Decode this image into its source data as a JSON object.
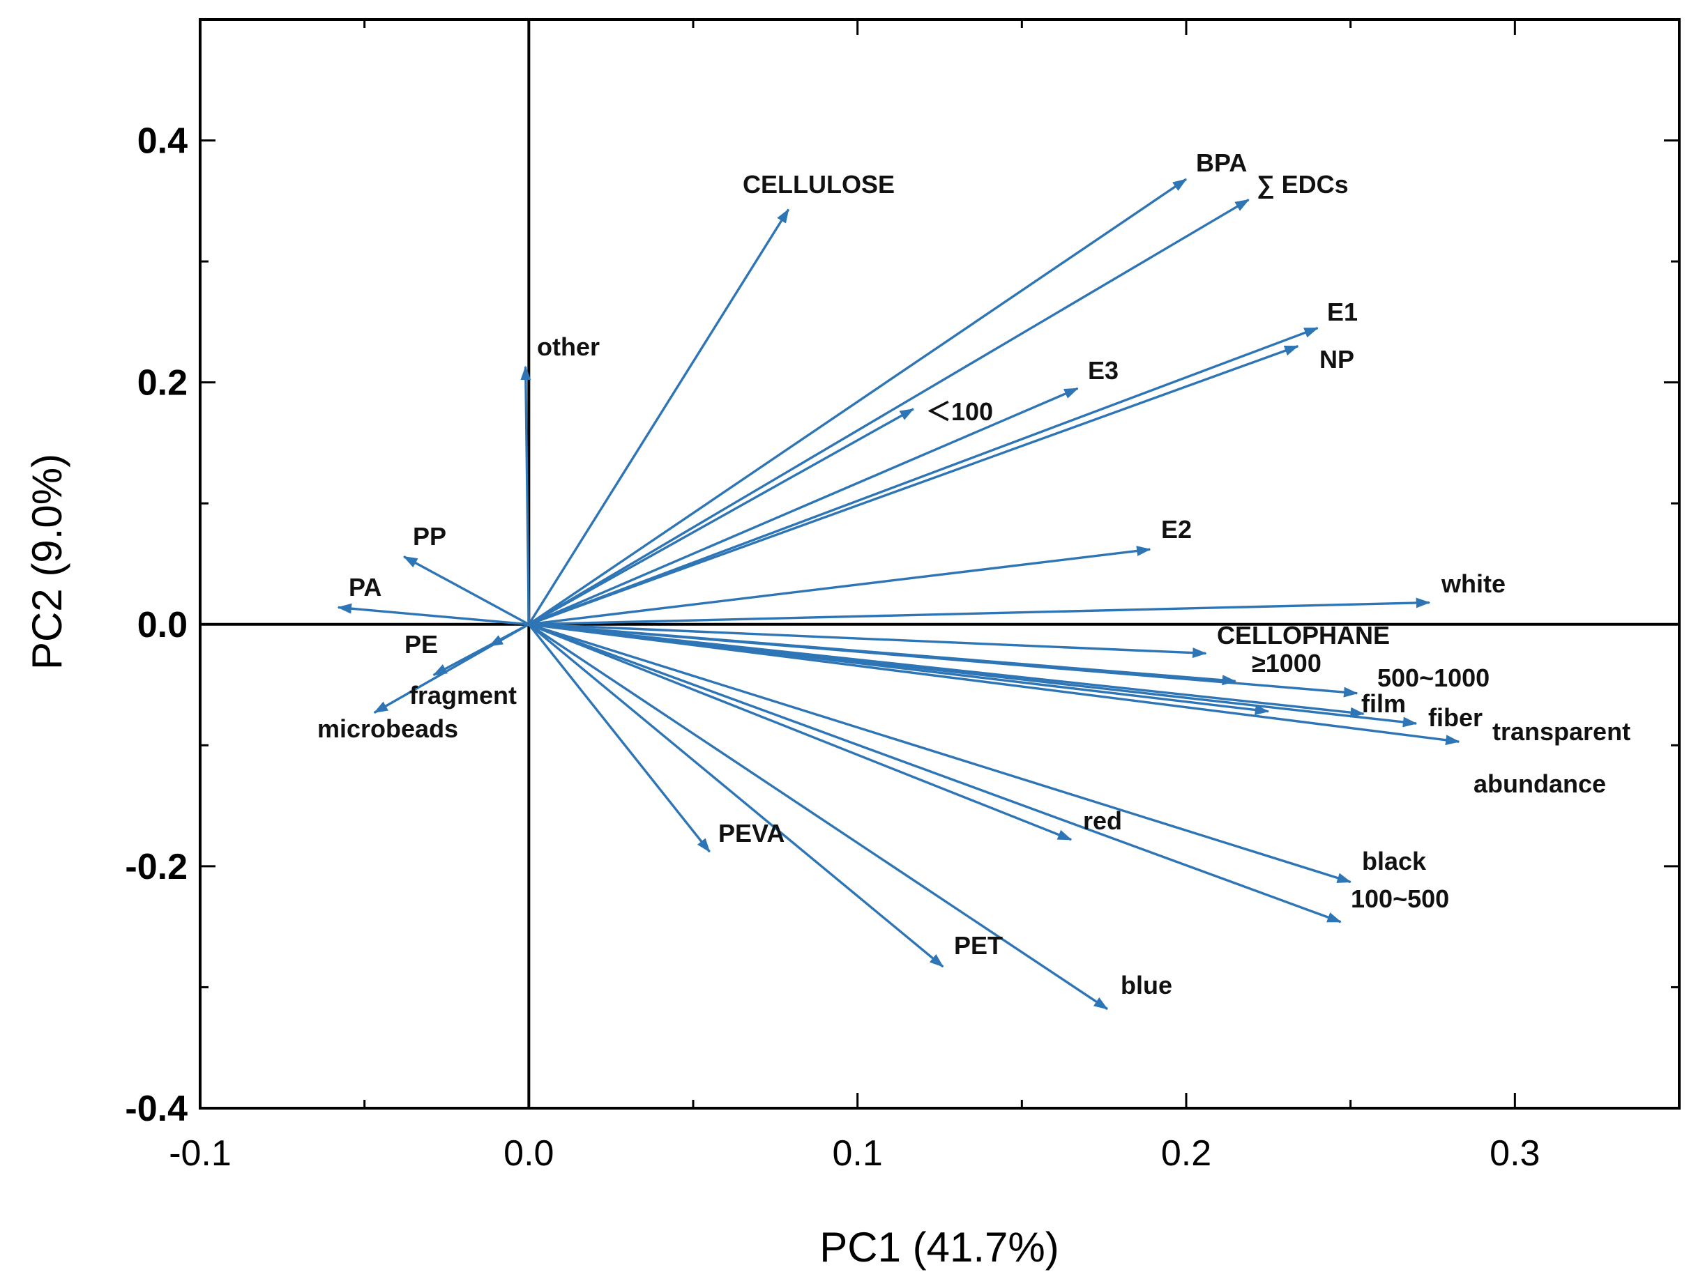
{
  "chart_data": {
    "type": "biplot",
    "xlabel": "PC1 (41.7%)",
    "ylabel": "PC2 (9.0%)",
    "xlim": [
      -0.1,
      0.35
    ],
    "ylim": [
      -0.4,
      0.5
    ],
    "x_ticks": [
      -0.1,
      0.0,
      0.1,
      0.2,
      0.3
    ],
    "x_tick_labels": [
      "-0.1",
      "0.0",
      "0.1",
      "0.2",
      "0.3"
    ],
    "y_ticks": [
      -0.4,
      -0.2,
      0.0,
      0.2,
      0.4
    ],
    "y_tick_labels": [
      "-0.4",
      "-0.2",
      "0.0",
      "0.2",
      "0.4"
    ],
    "arrow_color": "#2E75B6",
    "vectors": [
      {
        "name": "CELLULOSE",
        "x": 0.079,
        "y": 0.343
      },
      {
        "name": "other",
        "x": -0.001,
        "y": 0.213
      },
      {
        "name": "BPA",
        "x": 0.2,
        "y": 0.368
      },
      {
        "name": "∑ EDCs",
        "x": 0.219,
        "y": 0.351
      },
      {
        "name": "E1",
        "x": 0.24,
        "y": 0.245
      },
      {
        "name": "NP",
        "x": 0.234,
        "y": 0.23
      },
      {
        "name": "E3",
        "x": 0.167,
        "y": 0.195
      },
      {
        "name": "＜100",
        "x": 0.117,
        "y": 0.178
      },
      {
        "name": "E2",
        "x": 0.189,
        "y": 0.062
      },
      {
        "name": "white",
        "x": 0.274,
        "y": 0.018
      },
      {
        "name": "CELLOPHANE",
        "x": 0.206,
        "y": -0.024
      },
      {
        "name": "≥1000",
        "x": 0.215,
        "y": -0.047
      },
      {
        "name": "500~1000",
        "x": 0.252,
        "y": -0.057
      },
      {
        "name": "film",
        "x": 0.225,
        "y": -0.072
      },
      {
        "name": "fiber",
        "x": 0.254,
        "y": -0.074
      },
      {
        "name": "transparent",
        "x": 0.27,
        "y": -0.082
      },
      {
        "name": "abundance",
        "x": 0.283,
        "y": -0.097
      },
      {
        "name": "red",
        "x": 0.165,
        "y": -0.178
      },
      {
        "name": "black",
        "x": 0.25,
        "y": -0.213
      },
      {
        "name": "100~500",
        "x": 0.247,
        "y": -0.246
      },
      {
        "name": "PEVA",
        "x": 0.055,
        "y": -0.188
      },
      {
        "name": "PET",
        "x": 0.126,
        "y": -0.283
      },
      {
        "name": "blue",
        "x": 0.176,
        "y": -0.318
      },
      {
        "name": "PP",
        "x": -0.038,
        "y": 0.056
      },
      {
        "name": "PA",
        "x": -0.058,
        "y": 0.014
      },
      {
        "name": "PE",
        "x": -0.029,
        "y": -0.042
      },
      {
        "name": "fragment",
        "x": -0.012,
        "y": -0.018
      },
      {
        "name": "microbeads",
        "x": -0.047,
        "y": -0.073
      }
    ]
  }
}
